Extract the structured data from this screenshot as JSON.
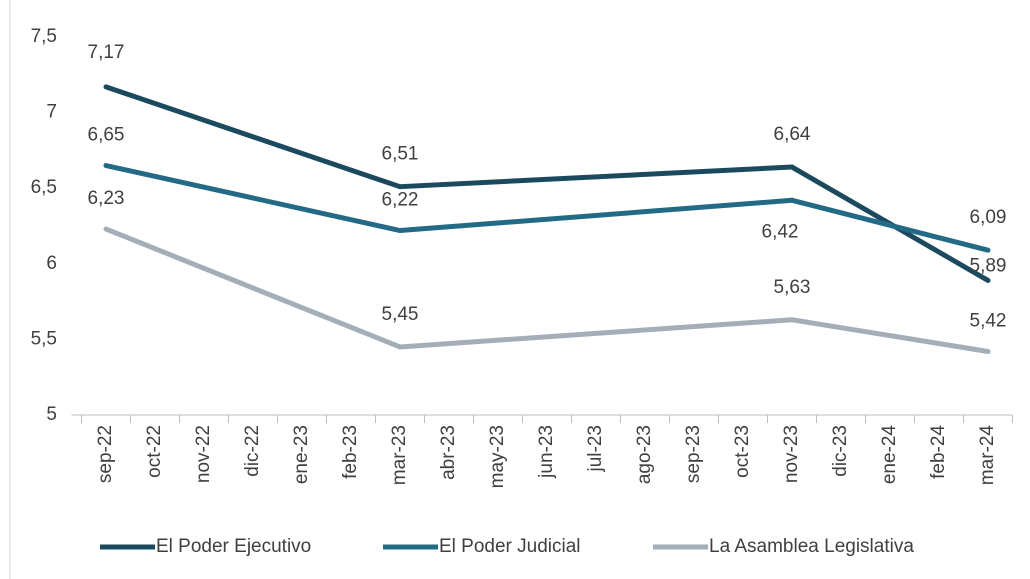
{
  "chart_data": {
    "type": "line",
    "categories": [
      "sep-22",
      "oct-22",
      "nov-22",
      "dic-22",
      "ene-23",
      "feb-23",
      "mar-23",
      "abr-23",
      "may-23",
      "jun-23",
      "jul-23",
      "ago-23",
      "sep-23",
      "oct-23",
      "nov-23",
      "dic-23",
      "ene-24",
      "feb-24",
      "mar-24"
    ],
    "series": [
      {
        "name": "El Poder Ejecutivo",
        "color": "#1b4a5e",
        "values": [
          7.17,
          null,
          null,
          null,
          null,
          null,
          6.51,
          null,
          null,
          null,
          null,
          null,
          null,
          null,
          6.64,
          null,
          null,
          null,
          5.89
        ],
        "value_labels": [
          "7,17",
          null,
          null,
          null,
          null,
          null,
          "6,51",
          null,
          null,
          null,
          null,
          null,
          null,
          null,
          "6,64",
          null,
          null,
          null,
          "5,89"
        ]
      },
      {
        "name": "El Poder Judicial",
        "color": "#236a86",
        "values": [
          6.65,
          null,
          null,
          null,
          null,
          null,
          6.22,
          null,
          null,
          null,
          null,
          null,
          null,
          null,
          6.42,
          null,
          null,
          null,
          6.09
        ],
        "value_labels": [
          "6,65",
          null,
          null,
          null,
          null,
          null,
          "6,22",
          null,
          null,
          null,
          null,
          null,
          null,
          null,
          "6,42",
          null,
          null,
          null,
          "6,09"
        ]
      },
      {
        "name": "La Asamblea Legislativa",
        "color": "#a3aeb9",
        "values": [
          6.23,
          null,
          null,
          null,
          null,
          null,
          5.45,
          null,
          null,
          null,
          null,
          null,
          null,
          null,
          5.63,
          null,
          null,
          null,
          5.42
        ],
        "value_labels": [
          "6,23",
          null,
          null,
          null,
          null,
          null,
          "5,45",
          null,
          null,
          null,
          null,
          null,
          null,
          null,
          "5,63",
          null,
          null,
          null,
          "5,42"
        ]
      }
    ],
    "ylim": [
      5,
      7.5
    ],
    "yticks": [
      5,
      {
        "value": 5.5,
        "label": "5,5"
      },
      6,
      {
        "value": 6.5,
        "label": "6,5"
      },
      7,
      {
        "value": 7.5,
        "label": "7,5"
      }
    ],
    "grid": false,
    "legend": "bottom"
  }
}
